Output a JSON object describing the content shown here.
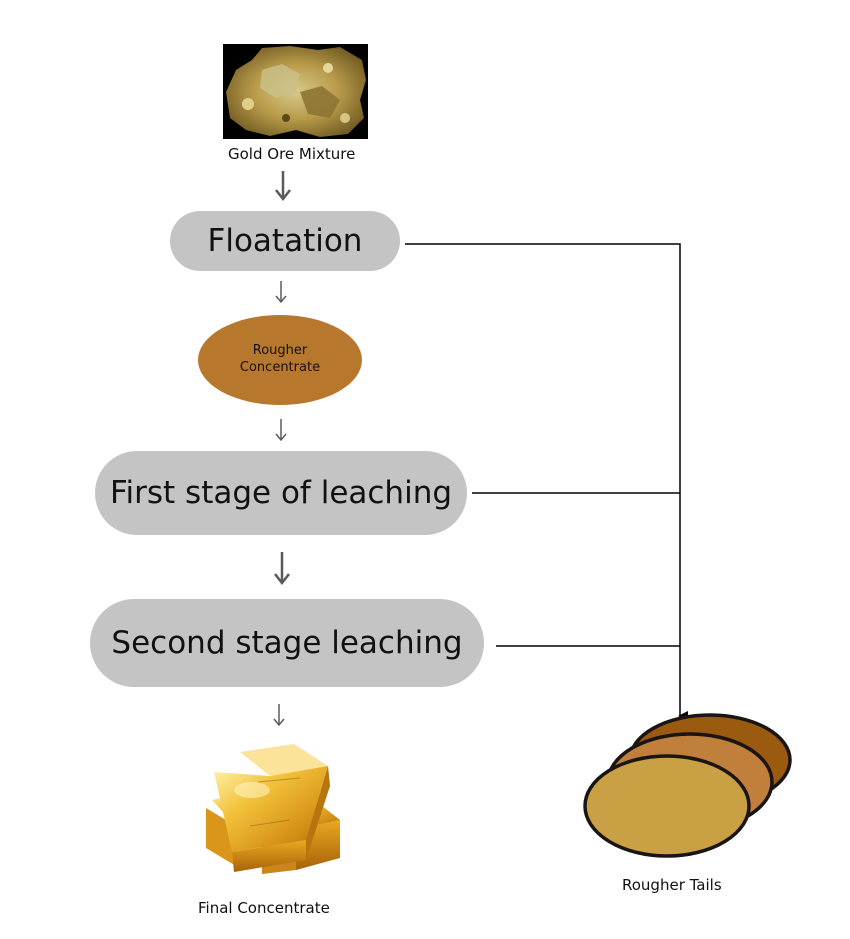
{
  "nodes": {
    "ore": {
      "label": "Gold Ore Mixture",
      "image": "gold-ore-image"
    },
    "floatation": {
      "label": "Floatation"
    },
    "rougher_concentrate": {
      "line1": "Rougher",
      "line2": "Concentrate"
    },
    "first_leach": {
      "label": "First stage of leaching"
    },
    "second_leach": {
      "label": "Second stage leaching"
    },
    "final": {
      "label": "Final Concentrate",
      "image": "gold-bars-image"
    },
    "tails": {
      "label": "Rougher Tails",
      "image": "tailings-stack-icon"
    }
  },
  "colors": {
    "pill": "#c4c4c4",
    "concentrate": "#b7782e",
    "gold": "#e2a722",
    "tail_back": "#9a5a10",
    "tail_mid": "#c0803c",
    "tail_front": "#c9a043",
    "line": "#000000",
    "arrow": "#5a5a5a"
  }
}
